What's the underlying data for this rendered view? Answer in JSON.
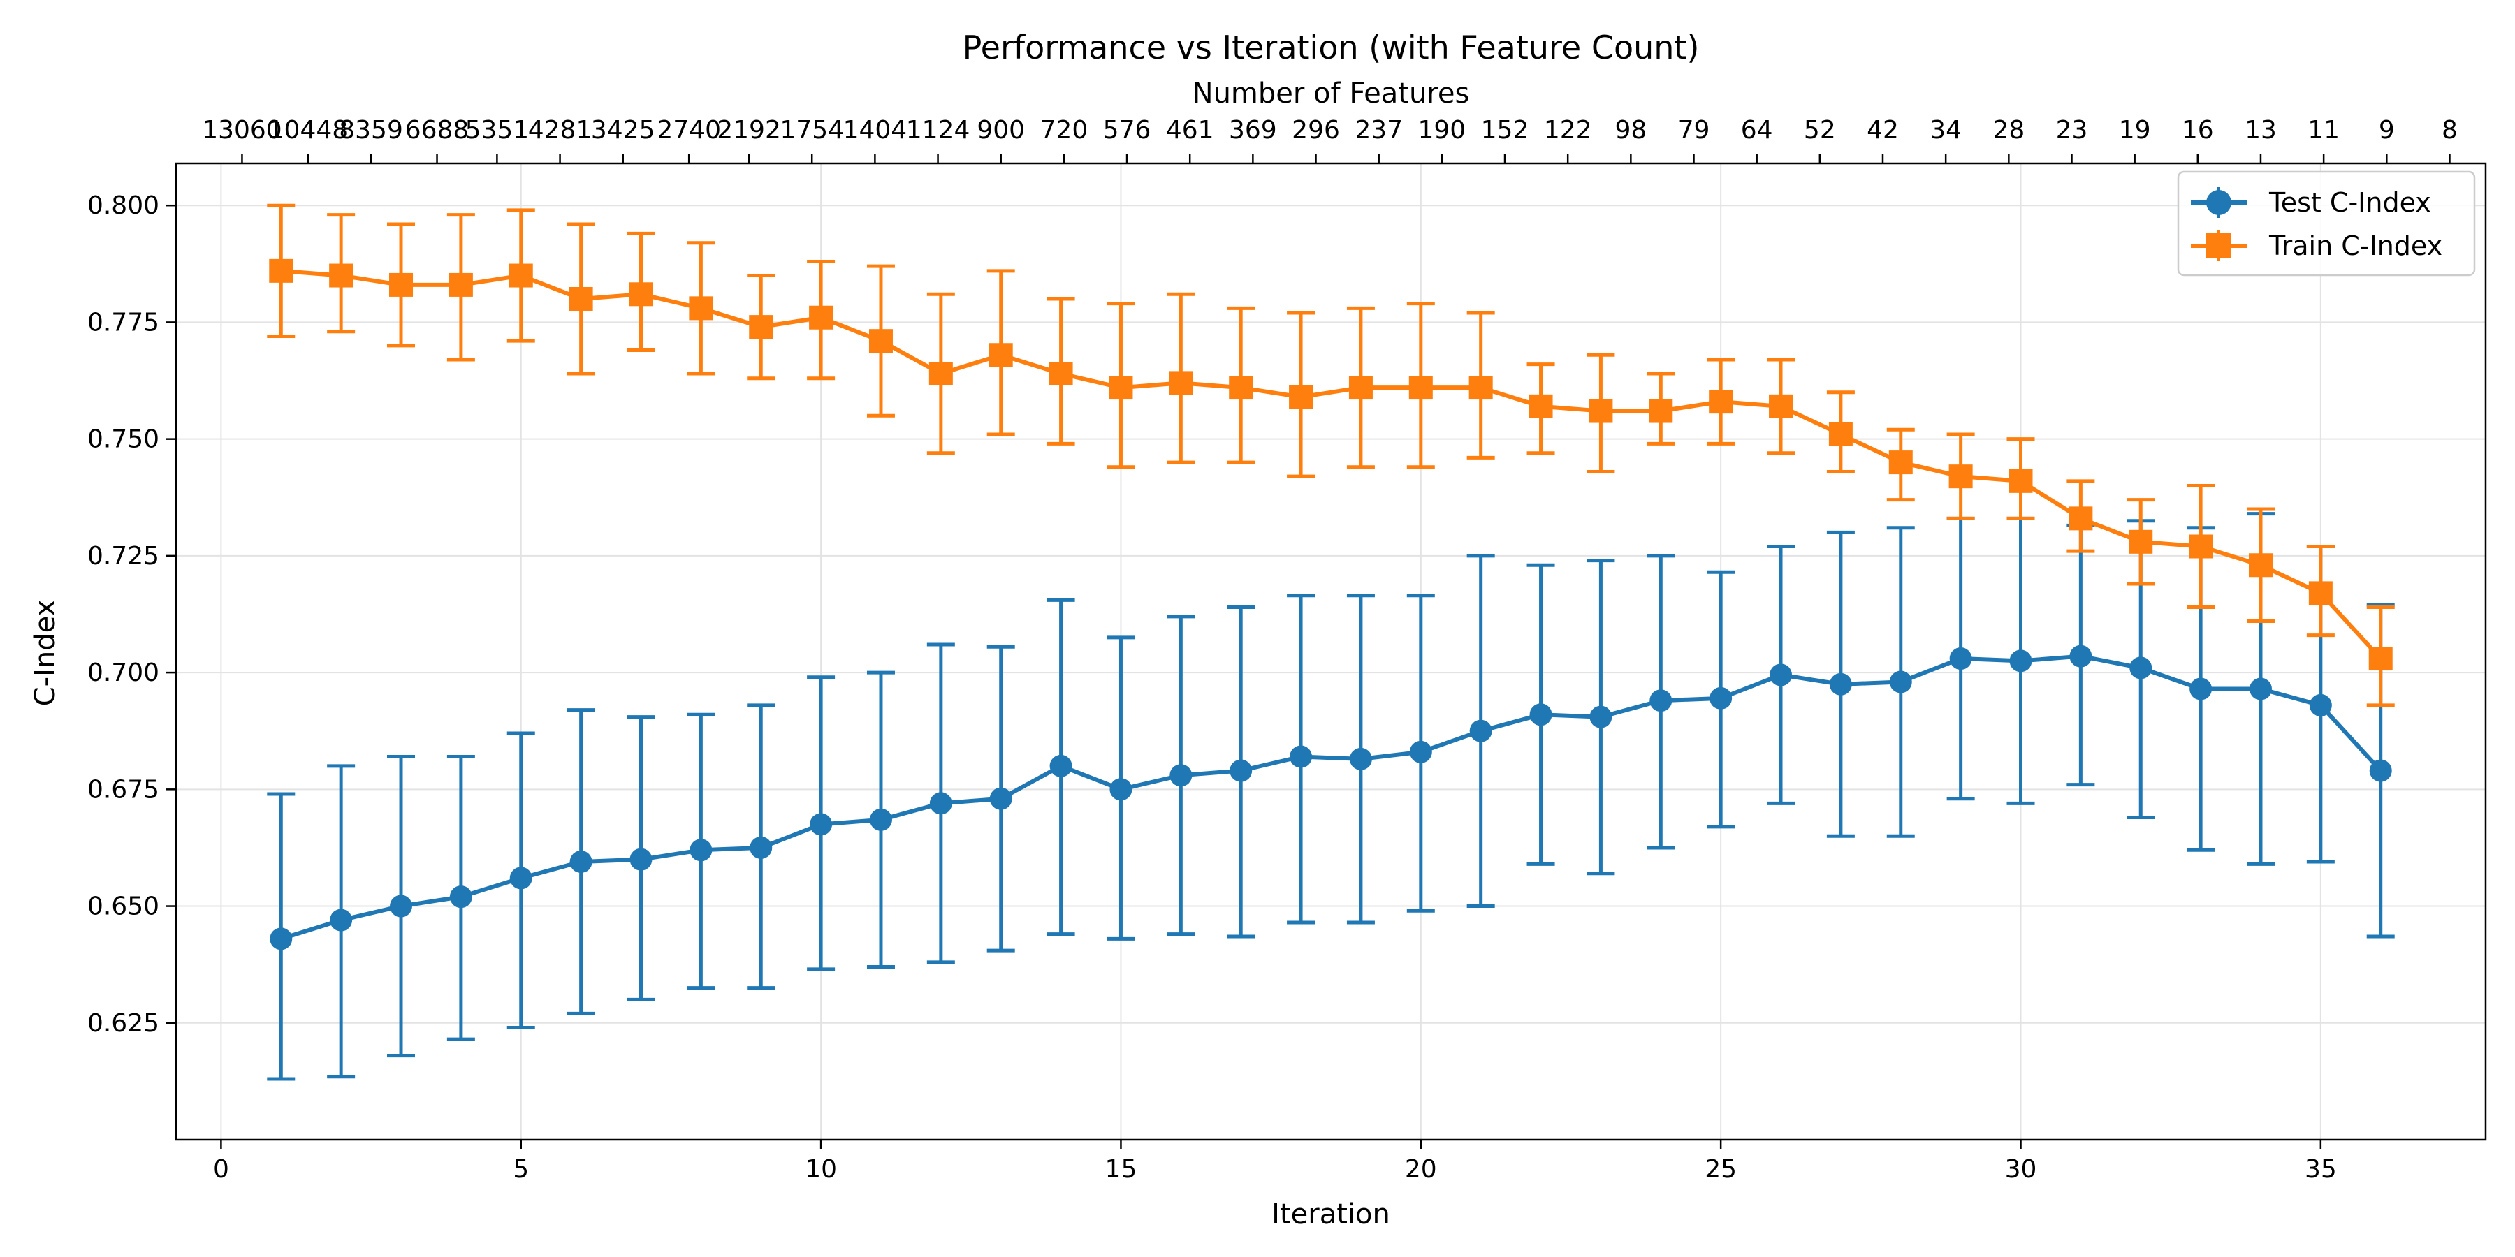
{
  "colors": {
    "test": "#1f77b4",
    "train": "#ff7f0e",
    "grid": "#e3e3e3",
    "axis": "#000000"
  },
  "chart_data": {
    "type": "line",
    "title": "Performance vs Iteration (with Feature Count)",
    "xlabel": "Iteration",
    "ylabel": "C-Index",
    "top_xlabel": "Number of Features",
    "xlim": [
      -0.75,
      37.75
    ],
    "ylim": [
      0.6,
      0.809
    ],
    "grid": true,
    "legend_position": "top-right",
    "x_ticks": [
      0,
      5,
      10,
      15,
      20,
      25,
      30,
      35
    ],
    "y_ticks": [
      0.625,
      0.65,
      0.675,
      0.7,
      0.725,
      0.75,
      0.775,
      0.8
    ],
    "y_tick_labels": [
      "0.625",
      "0.650",
      "0.675",
      "0.700",
      "0.725",
      "0.750",
      "0.775",
      "0.800"
    ],
    "top_ticks": [
      {
        "x": 0.35,
        "label": "13060"
      },
      {
        "x": 1.45,
        "label": "10448"
      },
      {
        "x": 2.5,
        "label": "8359"
      },
      {
        "x": 3.6,
        "label": "6688"
      },
      {
        "x": 4.6,
        "label": "5351"
      },
      {
        "x": 5.65,
        "label": "4281"
      },
      {
        "x": 6.7,
        "label": "3425"
      },
      {
        "x": 7.8,
        "label": "2740"
      },
      {
        "x": 8.8,
        "label": "2192"
      },
      {
        "x": 9.85,
        "label": "1754"
      },
      {
        "x": 10.9,
        "label": "1404"
      },
      {
        "x": 11.95,
        "label": "1124"
      },
      {
        "x": 13.0,
        "label": "900"
      },
      {
        "x": 14.05,
        "label": "720"
      },
      {
        "x": 15.1,
        "label": "576"
      },
      {
        "x": 16.15,
        "label": "461"
      },
      {
        "x": 17.2,
        "label": "369"
      },
      {
        "x": 18.25,
        "label": "296"
      },
      {
        "x": 19.3,
        "label": "237"
      },
      {
        "x": 20.35,
        "label": "190"
      },
      {
        "x": 21.4,
        "label": "152"
      },
      {
        "x": 22.45,
        "label": "122"
      },
      {
        "x": 23.5,
        "label": "98"
      },
      {
        "x": 24.55,
        "label": "79"
      },
      {
        "x": 25.6,
        "label": "64"
      },
      {
        "x": 26.65,
        "label": "52"
      },
      {
        "x": 27.7,
        "label": "42"
      },
      {
        "x": 28.75,
        "label": "34"
      },
      {
        "x": 29.8,
        "label": "28"
      },
      {
        "x": 30.85,
        "label": "23"
      },
      {
        "x": 31.9,
        "label": "19"
      },
      {
        "x": 32.95,
        "label": "16"
      },
      {
        "x": 34.0,
        "label": "13"
      },
      {
        "x": 35.05,
        "label": "11"
      },
      {
        "x": 36.1,
        "label": "9"
      },
      {
        "x": 37.15,
        "label": "8"
      }
    ],
    "x": [
      1,
      2,
      3,
      4,
      5,
      6,
      7,
      8,
      9,
      10,
      11,
      12,
      13,
      14,
      15,
      16,
      17,
      18,
      19,
      20,
      21,
      22,
      23,
      24,
      25,
      26,
      27,
      28,
      29,
      30,
      31,
      32,
      33,
      34,
      35,
      36
    ],
    "series": [
      {
        "name": "Test C-Index",
        "marker": "circle",
        "values": [
          0.643,
          0.647,
          0.65,
          0.652,
          0.656,
          0.6595,
          0.66,
          0.662,
          0.6625,
          0.6675,
          0.6685,
          0.672,
          0.673,
          0.68,
          0.675,
          0.678,
          0.679,
          0.682,
          0.6815,
          0.683,
          0.6875,
          0.691,
          0.6905,
          0.694,
          0.6945,
          0.6995,
          0.6975,
          0.698,
          0.703,
          0.7025,
          0.7035,
          0.701,
          0.6965,
          0.6965,
          0.693,
          0.679
        ],
        "lower": [
          0.613,
          0.6135,
          0.618,
          0.6215,
          0.624,
          0.627,
          0.63,
          0.6325,
          0.6325,
          0.6365,
          0.637,
          0.638,
          0.6405,
          0.644,
          0.643,
          0.644,
          0.6435,
          0.6465,
          0.6465,
          0.649,
          0.65,
          0.659,
          0.657,
          0.6625,
          0.667,
          0.672,
          0.665,
          0.665,
          0.673,
          0.672,
          0.676,
          0.669,
          0.662,
          0.659,
          0.6595,
          0.6435
        ],
        "upper": [
          0.674,
          0.68,
          0.682,
          0.682,
          0.687,
          0.692,
          0.6905,
          0.691,
          0.693,
          0.699,
          0.7,
          0.706,
          0.7055,
          0.7155,
          0.7075,
          0.712,
          0.714,
          0.7165,
          0.7165,
          0.7165,
          0.725,
          0.723,
          0.724,
          0.725,
          0.7215,
          0.727,
          0.73,
          0.731,
          0.733,
          0.733,
          0.7315,
          0.7325,
          0.731,
          0.734,
          0.727,
          0.7145
        ]
      },
      {
        "name": "Train C-Index",
        "marker": "square",
        "values": [
          0.786,
          0.785,
          0.783,
          0.783,
          0.785,
          0.78,
          0.781,
          0.778,
          0.774,
          0.776,
          0.771,
          0.764,
          0.768,
          0.764,
          0.761,
          0.762,
          0.761,
          0.759,
          0.761,
          0.761,
          0.761,
          0.757,
          0.756,
          0.756,
          0.758,
          0.757,
          0.751,
          0.745,
          0.742,
          0.741,
          0.733,
          0.728,
          0.727,
          0.723,
          0.717,
          0.703
        ],
        "lower": [
          0.772,
          0.773,
          0.77,
          0.767,
          0.771,
          0.764,
          0.769,
          0.764,
          0.763,
          0.763,
          0.755,
          0.747,
          0.751,
          0.749,
          0.744,
          0.745,
          0.745,
          0.742,
          0.744,
          0.744,
          0.746,
          0.747,
          0.743,
          0.749,
          0.749,
          0.747,
          0.743,
          0.737,
          0.733,
          0.733,
          0.726,
          0.719,
          0.714,
          0.711,
          0.708,
          0.693
        ],
        "upper": [
          0.8,
          0.798,
          0.796,
          0.798,
          0.799,
          0.796,
          0.794,
          0.792,
          0.785,
          0.788,
          0.787,
          0.781,
          0.786,
          0.78,
          0.779,
          0.781,
          0.778,
          0.777,
          0.778,
          0.779,
          0.777,
          0.766,
          0.768,
          0.764,
          0.767,
          0.767,
          0.76,
          0.752,
          0.751,
          0.75,
          0.741,
          0.737,
          0.74,
          0.735,
          0.727,
          0.714
        ]
      }
    ]
  }
}
